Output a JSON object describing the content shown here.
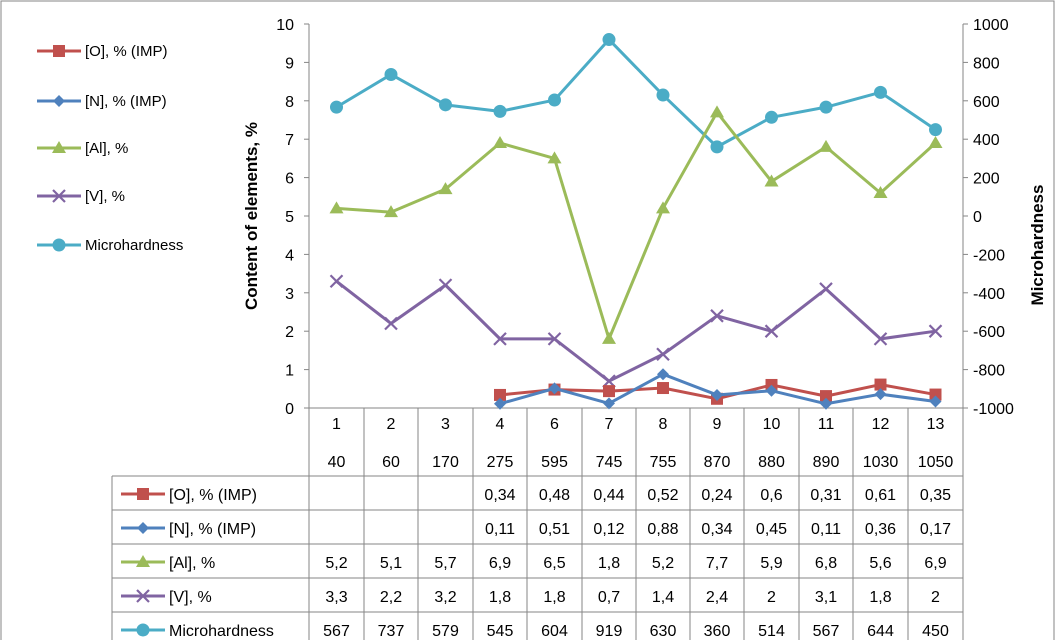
{
  "chart_data": {
    "type": "line",
    "categories": [
      {
        "top": "1",
        "bottom": "40"
      },
      {
        "top": "2",
        "bottom": "60"
      },
      {
        "top": "3",
        "bottom": "170"
      },
      {
        "top": "4",
        "bottom": "275"
      },
      {
        "top": "6",
        "bottom": "595"
      },
      {
        "top": "7",
        "bottom": "745"
      },
      {
        "top": "8",
        "bottom": "755"
      },
      {
        "top": "9",
        "bottom": "870"
      },
      {
        "top": "10",
        "bottom": "880"
      },
      {
        "top": "11",
        "bottom": "890"
      },
      {
        "top": "12",
        "bottom": "1030"
      },
      {
        "top": "13",
        "bottom": "1050"
      }
    ],
    "ylabel": "Content of elements, %",
    "y2label": "Microhardness",
    "ylim": [
      0,
      10
    ],
    "yticks": [
      "0",
      "1",
      "2",
      "3",
      "4",
      "5",
      "6",
      "7",
      "8",
      "9",
      "10"
    ],
    "y2lim": [
      -1000,
      1000
    ],
    "y2ticks": [
      "-1000",
      "-800",
      "-600",
      "-400",
      "-200",
      "0",
      "200",
      "400",
      "600",
      "800",
      "1000"
    ],
    "grid": "vertical",
    "legend_position": "left",
    "series": [
      {
        "name": "[O], % (IMP)",
        "axis": "left",
        "color": "#c0504d",
        "marker": "square",
        "values": [
          null,
          null,
          null,
          0.34,
          0.48,
          0.44,
          0.52,
          0.24,
          0.6,
          0.31,
          0.61,
          0.35
        ],
        "labels": [
          "",
          "",
          "",
          "0,34",
          "0,48",
          "0,44",
          "0,52",
          "0,24",
          "0,6",
          "0,31",
          "0,61",
          "0,35"
        ]
      },
      {
        "name": "[N], % (IMP)",
        "axis": "left",
        "color": "#4f81bd",
        "marker": "diamond",
        "values": [
          null,
          null,
          null,
          0.11,
          0.51,
          0.12,
          0.88,
          0.34,
          0.45,
          0.11,
          0.36,
          0.17
        ],
        "labels": [
          "",
          "",
          "",
          "0,11",
          "0,51",
          "0,12",
          "0,88",
          "0,34",
          "0,45",
          "0,11",
          "0,36",
          "0,17"
        ]
      },
      {
        "name": "[Al], %",
        "axis": "left",
        "color": "#9bbb59",
        "marker": "triangle",
        "values": [
          5.2,
          5.1,
          5.7,
          6.9,
          6.5,
          1.8,
          5.2,
          7.7,
          5.9,
          6.8,
          5.6,
          6.9
        ],
        "labels": [
          "5,2",
          "5,1",
          "5,7",
          "6,9",
          "6,5",
          "1,8",
          "5,2",
          "7,7",
          "5,9",
          "6,8",
          "5,6",
          "6,9"
        ]
      },
      {
        "name": "[V], %",
        "axis": "left",
        "color": "#8064a2",
        "marker": "x",
        "values": [
          3.3,
          2.2,
          3.2,
          1.8,
          1.8,
          0.7,
          1.4,
          2.4,
          2,
          3.1,
          1.8,
          2
        ],
        "labels": [
          "3,3",
          "2,2",
          "3,2",
          "1,8",
          "1,8",
          "0,7",
          "1,4",
          "2,4",
          "2",
          "3,1",
          "1,8",
          "2"
        ]
      },
      {
        "name": "Microhardness",
        "axis": "right",
        "color": "#4bacc6",
        "marker": "circle",
        "values": [
          567,
          737,
          579,
          545,
          604,
          919,
          630,
          360,
          514,
          567,
          644,
          450
        ],
        "labels": [
          "567",
          "737",
          "579",
          "545",
          "604",
          "919",
          "630",
          "360",
          "514",
          "567",
          "644",
          "450"
        ]
      }
    ]
  }
}
